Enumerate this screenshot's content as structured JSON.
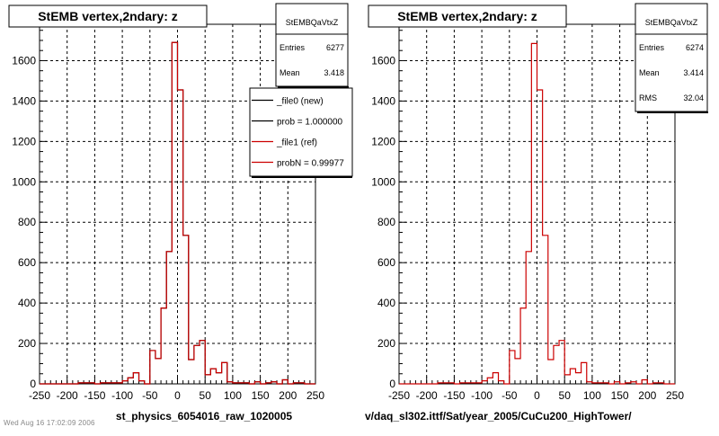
{
  "chart_data": [
    {
      "type": "line",
      "title": "StEMB  vertex,2ndary: z",
      "xlabel": "st_physics_6054016_raw_1020005",
      "ylabel": "",
      "xlim": [
        -250,
        250
      ],
      "ylim": [
        0,
        1780
      ],
      "grid": true,
      "x_ticks": [
        "-250",
        "-200",
        "-150",
        "-100",
        "-50",
        "0",
        "50",
        "100",
        "150",
        "200",
        "250"
      ],
      "y_ticks": [
        "0",
        "200",
        "400",
        "600",
        "800",
        "1000",
        "1200",
        "1400",
        "1600"
      ],
      "x_edges": [
        -250,
        -240,
        -230,
        -220,
        -210,
        -200,
        -190,
        -180,
        -170,
        -160,
        -150,
        -140,
        -130,
        -120,
        -110,
        -100,
        -90,
        -80,
        -70,
        -60,
        -50,
        -40,
        -30,
        -20,
        -10,
        0,
        10,
        20,
        30,
        40,
        50,
        60,
        70,
        80,
        90,
        100,
        110,
        120,
        130,
        140,
        150,
        160,
        170,
        180,
        190,
        200,
        210,
        220,
        230,
        240,
        250
      ],
      "series": [
        {
          "name": "_file0 (new)",
          "color": "#000000",
          "values": [
            0,
            0,
            0,
            0,
            0,
            0,
            0,
            5,
            5,
            5,
            0,
            5,
            5,
            5,
            5,
            15,
            30,
            55,
            15,
            0,
            165,
            125,
            375,
            655,
            1690,
            1455,
            735,
            120,
            190,
            215,
            45,
            75,
            55,
            105,
            10,
            5,
            5,
            5,
            0,
            10,
            0,
            5,
            10,
            0,
            20,
            0,
            5,
            5,
            0,
            0
          ]
        },
        {
          "name": "_file1 (ref)",
          "color": "#cc0000",
          "values": [
            0,
            0,
            0,
            0,
            0,
            0,
            0,
            5,
            5,
            5,
            0,
            5,
            5,
            5,
            5,
            15,
            30,
            55,
            15,
            0,
            165,
            125,
            375,
            655,
            1690,
            1455,
            735,
            120,
            190,
            215,
            45,
            75,
            55,
            105,
            10,
            5,
            5,
            5,
            0,
            10,
            0,
            5,
            10,
            0,
            20,
            0,
            5,
            5,
            0,
            0
          ]
        }
      ],
      "stats": {
        "name": "StEMBQaVtxZ",
        "rows": [
          {
            "label": "Entries",
            "value": "6277"
          },
          {
            "label": "Mean",
            "value": "3.418"
          }
        ]
      },
      "legend": {
        "placement": "top-right",
        "entries": [
          {
            "label": "_file0 (new)",
            "color": "#000000"
          },
          {
            "label": "prob = 1.000000",
            "color": "#000000"
          },
          {
            "label": "_file1 (ref)",
            "color": "#cc0000"
          },
          {
            "label": "probN = 0.99977",
            "color": "#cc0000"
          }
        ]
      }
    },
    {
      "type": "line",
      "title": "StEMB  vertex,2ndary: z",
      "xlabel": "v/daq_sl302.ittf/Sat/year_2005/CuCu200_HighTower/",
      "ylabel": "",
      "xlim": [
        -250,
        250
      ],
      "ylim": [
        0,
        1780
      ],
      "grid": true,
      "x_ticks": [
        "-250",
        "-200",
        "-150",
        "-100",
        "-50",
        "0",
        "50",
        "100",
        "150",
        "200",
        "250"
      ],
      "y_ticks": [
        "0",
        "200",
        "400",
        "600",
        "800",
        "1000",
        "1200",
        "1400",
        "1600"
      ],
      "x_edges": [
        -250,
        -240,
        -230,
        -220,
        -210,
        -200,
        -190,
        -180,
        -170,
        -160,
        -150,
        -140,
        -130,
        -120,
        -110,
        -100,
        -90,
        -80,
        -70,
        -60,
        -50,
        -40,
        -30,
        -20,
        -10,
        0,
        10,
        20,
        30,
        40,
        50,
        60,
        70,
        80,
        90,
        100,
        110,
        120,
        130,
        140,
        150,
        160,
        170,
        180,
        190,
        200,
        210,
        220,
        230,
        240,
        250
      ],
      "series": [
        {
          "name": "",
          "color": "#cc0000",
          "values": [
            0,
            0,
            0,
            0,
            0,
            0,
            0,
            5,
            5,
            5,
            0,
            5,
            5,
            5,
            5,
            15,
            30,
            55,
            15,
            0,
            165,
            125,
            375,
            655,
            1685,
            1455,
            735,
            120,
            190,
            215,
            45,
            75,
            55,
            105,
            10,
            5,
            5,
            5,
            0,
            10,
            0,
            5,
            10,
            0,
            20,
            0,
            5,
            5,
            0,
            0
          ]
        }
      ],
      "stats": {
        "name": "StEMBQaVtxZ",
        "rows": [
          {
            "label": "Entries",
            "value": "6274"
          },
          {
            "label": "Mean",
            "value": "3.414"
          },
          {
            "label": "RMS",
            "value": "32.04"
          }
        ]
      }
    }
  ],
  "footer": {
    "note": "Wed Aug 16 17:02:09 2006"
  }
}
